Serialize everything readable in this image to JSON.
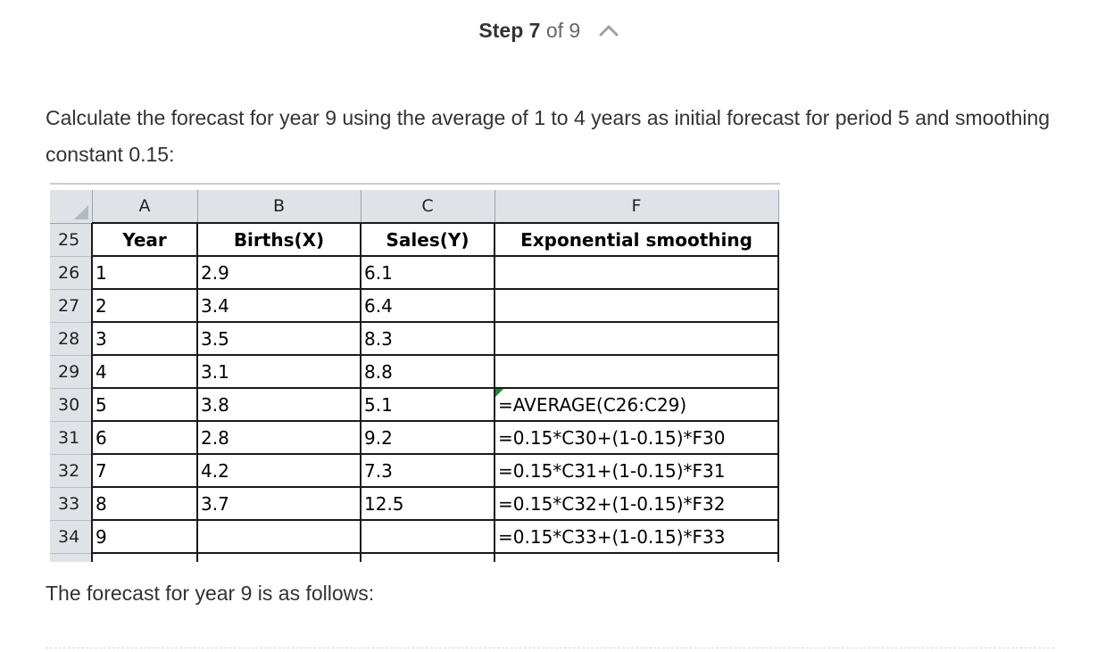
{
  "step": {
    "label": "Step",
    "current": "7",
    "of_text": "of 9"
  },
  "icons": {
    "collapse": "chevron-up-icon"
  },
  "instruction": "Calculate the forecast for year 9 using the average of 1 to 4 years as initial forecast for period 5 and smoothing constant 0.15:",
  "spreadsheet": {
    "column_letters": [
      "A",
      "B",
      "C",
      "F"
    ],
    "header_row": {
      "row_num": "25",
      "cells": [
        "Year",
        "Births(X)",
        "Sales(Y)",
        "Exponential smoothing"
      ]
    },
    "rows": [
      {
        "row_num": "26",
        "cells": [
          "1",
          "2.9",
          "6.1",
          ""
        ]
      },
      {
        "row_num": "27",
        "cells": [
          "2",
          "3.4",
          "6.4",
          ""
        ]
      },
      {
        "row_num": "28",
        "cells": [
          "3",
          "3.5",
          "8.3",
          ""
        ]
      },
      {
        "row_num": "29",
        "cells": [
          "4",
          "3.1",
          "8.8",
          ""
        ]
      },
      {
        "row_num": "30",
        "cells": [
          "5",
          "3.8",
          "5.1",
          "=AVERAGE(C26:C29)"
        ]
      },
      {
        "row_num": "31",
        "cells": [
          "6",
          "2.8",
          "9.2",
          "=0.15*C30+(1-0.15)*F30"
        ]
      },
      {
        "row_num": "32",
        "cells": [
          "7",
          "4.2",
          "7.3",
          "=0.15*C31+(1-0.15)*F31"
        ]
      },
      {
        "row_num": "33",
        "cells": [
          "8",
          "3.7",
          "12.5",
          "=0.15*C32+(1-0.15)*F32"
        ]
      },
      {
        "row_num": "34",
        "cells": [
          "9",
          "",
          "",
          "=0.15*C33+(1-0.15)*F33"
        ]
      }
    ]
  },
  "footer_text": "The forecast for year 9 is as follows:",
  "colors": {
    "text": "#333333",
    "header_bg": "#dfe3e8",
    "formula_marker": "#1f8a2c"
  }
}
